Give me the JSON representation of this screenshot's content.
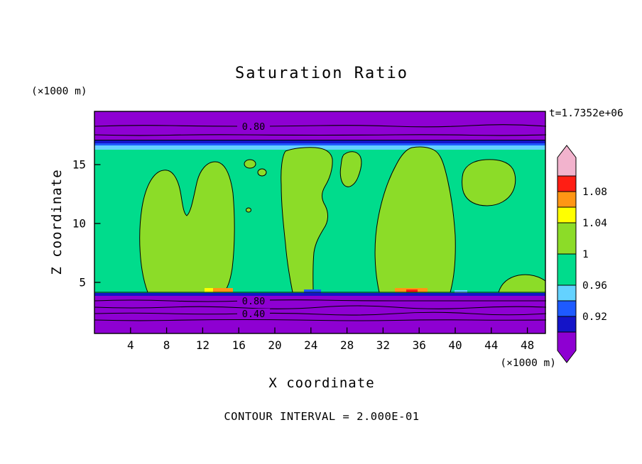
{
  "chart_data": {
    "type": "contour",
    "title": "Saturation Ratio",
    "time_label": "t=1.7352e+06",
    "xlabel": "X coordinate",
    "ylabel": "Z coordinate",
    "x_unit_label": "(×1000 m)",
    "y_unit_label": "(×1000 m)",
    "footer": "CONTOUR INTERVAL = 2.000E-01",
    "x_ticks": [
      4,
      8,
      12,
      16,
      20,
      24,
      28,
      32,
      36,
      40,
      44,
      48
    ],
    "y_ticks": [
      5,
      10,
      15
    ],
    "x_range": [
      0,
      50
    ],
    "y_range": [
      0.7,
      19.5
    ],
    "contour_interval": 0.2,
    "contour_labels": {
      "top_band": "0.80",
      "bottom_band_upper": "0.80",
      "bottom_band_lower": "0.40"
    },
    "colorbar": {
      "over_arrow_color": "#f2b3cd",
      "under_arrow_color": "#8e00d2",
      "segments": [
        {
          "color": "#ff1e14",
          "label_below": "1.08"
        },
        {
          "color": "#ff9614",
          "label_below": ""
        },
        {
          "color": "#ffff00",
          "label_below": "1.04"
        },
        {
          "color": "#8cdc28",
          "label_below": "1"
        },
        {
          "color": "#00dc8c",
          "label_below": "0.96"
        },
        {
          "color": "#64d2ff",
          "label_below": ""
        },
        {
          "color": "#1e5aff",
          "label_below": "0.92"
        },
        {
          "color": "#1414c8",
          "label_below": ""
        }
      ]
    },
    "region_colors": {
      "main_field": "#00dc8c",
      "supersaturated_blobs": "#8cdc28",
      "dry_bands": "#8e00d2",
      "transition_cyan": "#64d2ff",
      "transition_blue": "#1e5aff",
      "transition_navy": "#1414c8",
      "hot_spot_orange": "#ff9614",
      "hot_spot_yellow": "#ffff00",
      "hot_spot_red": "#ff1e14"
    }
  }
}
